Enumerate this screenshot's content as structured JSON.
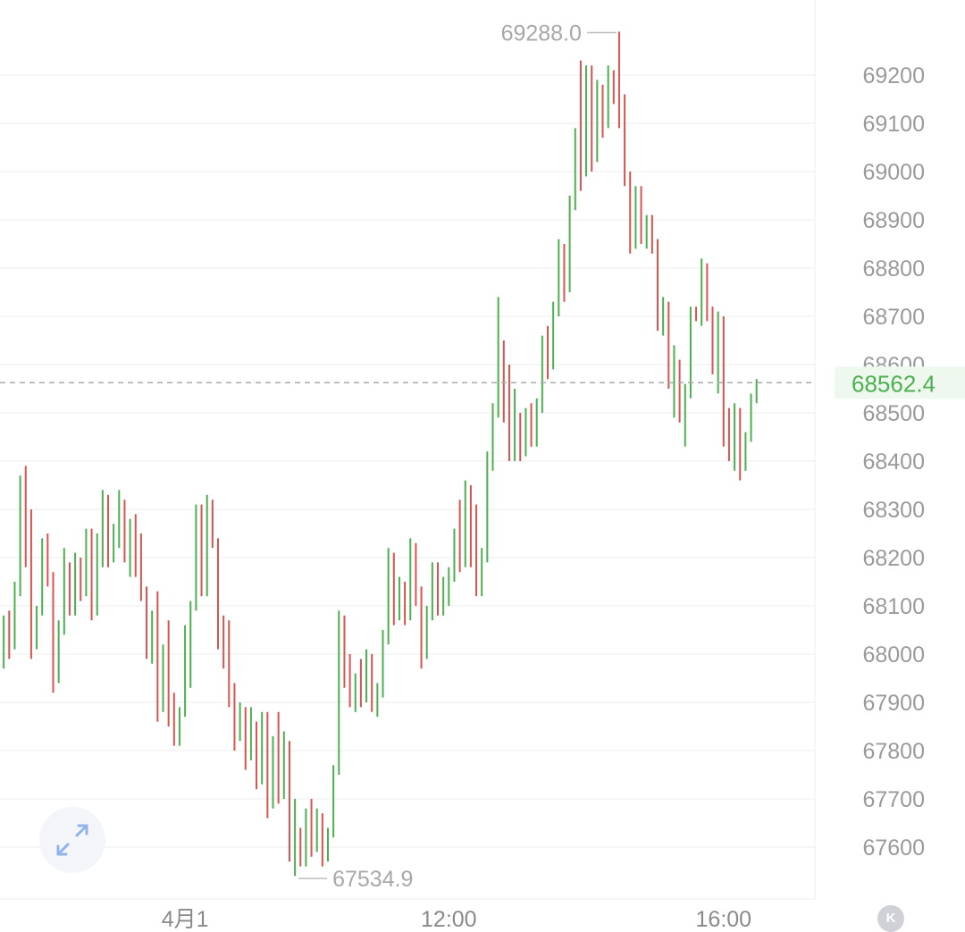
{
  "chart_data": {
    "type": "candlestick",
    "y_ticks": [
      69200,
      69100,
      69000,
      68900,
      68800,
      68700,
      68600,
      68500,
      68400,
      68300,
      68200,
      68100,
      68000,
      67900,
      67800,
      67700,
      67600
    ],
    "y_tick_labels": [
      "69200",
      "69100",
      "69000",
      "68900",
      "68800",
      "68700",
      "68600",
      "68500",
      "68400",
      "68300",
      "68200",
      "68100",
      "68000",
      "67900",
      "67800",
      "67700",
      "67600"
    ],
    "x_ticks": [
      {
        "label": "4月1",
        "bar": 34
      },
      {
        "label": "12:00",
        "bar": 82
      },
      {
        "label": "16:00",
        "bar": 132
      }
    ],
    "high": {
      "value": 69288.0,
      "label": "69288.0"
    },
    "low": {
      "value": 67534.9,
      "label": "67534.9"
    },
    "current_price": {
      "value": 68562.4,
      "label": "68562.4"
    },
    "colors": {
      "up": "#4caf50",
      "down": "#d9534f",
      "current_price": "#4caf50",
      "grid": "#eeeeee"
    },
    "ohlc": [
      [
        67930,
        68020,
        67910,
        67990
      ],
      [
        67990,
        68080,
        67970,
        68060
      ],
      [
        68060,
        68090,
        67990,
        68020
      ],
      [
        68020,
        68150,
        68010,
        68130
      ],
      [
        68130,
        68370,
        68120,
        68350
      ],
      [
        68350,
        68390,
        68180,
        68200
      ],
      [
        68200,
        68300,
        67990,
        68020
      ],
      [
        68020,
        68100,
        68010,
        68090
      ],
      [
        68090,
        68240,
        68080,
        68220
      ],
      [
        68220,
        68250,
        68140,
        68160
      ],
      [
        68160,
        68170,
        67920,
        67950
      ],
      [
        67950,
        68070,
        67940,
        68050
      ],
      [
        68050,
        68220,
        68040,
        68180
      ],
      [
        68180,
        68190,
        68080,
        68100
      ],
      [
        68100,
        68210,
        68080,
        68190
      ],
      [
        68190,
        68200,
        68110,
        68130
      ],
      [
        68130,
        68260,
        68120,
        68240
      ],
      [
        68240,
        68260,
        68070,
        68090
      ],
      [
        68090,
        68250,
        68080,
        68230
      ],
      [
        68230,
        68340,
        68180,
        68320
      ],
      [
        68320,
        68330,
        68180,
        68200
      ],
      [
        68200,
        68270,
        68190,
        68250
      ],
      [
        68250,
        68340,
        68220,
        68310
      ],
      [
        68310,
        68320,
        68190,
        68210
      ],
      [
        68210,
        68280,
        68160,
        68260
      ],
      [
        68260,
        68290,
        68160,
        68180
      ],
      [
        68180,
        68250,
        68110,
        68130
      ],
      [
        68130,
        68140,
        67990,
        68010
      ],
      [
        68010,
        68090,
        67980,
        68050
      ],
      [
        68050,
        68130,
        67860,
        67900
      ],
      [
        67900,
        68020,
        67880,
        68000
      ],
      [
        68000,
        68070,
        67850,
        67890
      ],
      [
        67890,
        67920,
        67810,
        67830
      ],
      [
        67830,
        67890,
        67810,
        67880
      ],
      [
        67880,
        68060,
        67870,
        68050
      ],
      [
        68050,
        68110,
        67930,
        68100
      ],
      [
        68100,
        68310,
        68090,
        68300
      ],
      [
        68300,
        68310,
        68120,
        68140
      ],
      [
        68140,
        68330,
        68120,
        68310
      ],
      [
        68310,
        68320,
        68220,
        68240
      ],
      [
        68240,
        68240,
        68010,
        68030
      ],
      [
        68030,
        68080,
        67970,
        68000
      ],
      [
        68000,
        68070,
        67890,
        67910
      ],
      [
        67910,
        67940,
        67800,
        67840
      ],
      [
        67840,
        67900,
        67820,
        67880
      ],
      [
        67880,
        67890,
        67760,
        67790
      ],
      [
        67790,
        67890,
        67780,
        67840
      ],
      [
        67840,
        67860,
        67720,
        67750
      ],
      [
        67750,
        67880,
        67730,
        67860
      ],
      [
        67860,
        67880,
        67660,
        67690
      ],
      [
        67690,
        67830,
        67680,
        67820
      ],
      [
        67820,
        67880,
        67690,
        67720
      ],
      [
        67720,
        67840,
        67700,
        67810
      ],
      [
        67810,
        67820,
        67570,
        67600
      ],
      [
        67600,
        67700,
        67540,
        67620
      ],
      [
        67620,
        67640,
        67560,
        67570
      ],
      [
        67570,
        67680,
        67560,
        67660
      ],
      [
        67660,
        67700,
        67580,
        67600
      ],
      [
        67600,
        67680,
        67590,
        67650
      ],
      [
        67650,
        67670,
        67560,
        67580
      ],
      [
        67580,
        67640,
        67570,
        67630
      ],
      [
        67630,
        67770,
        67620,
        67760
      ],
      [
        67760,
        68090,
        67750,
        68070
      ],
      [
        68070,
        68080,
        67930,
        67960
      ],
      [
        67960,
        68000,
        67890,
        67910
      ],
      [
        67910,
        67960,
        67880,
        67950
      ],
      [
        67950,
        67990,
        67890,
        67910
      ],
      [
        67910,
        68010,
        67900,
        67990
      ],
      [
        67990,
        68000,
        67880,
        67900
      ],
      [
        67900,
        67940,
        67870,
        67920
      ],
      [
        67920,
        68050,
        67910,
        68030
      ],
      [
        68030,
        68220,
        68020,
        68200
      ],
      [
        68200,
        68210,
        68060,
        68080
      ],
      [
        68080,
        68160,
        68070,
        68140
      ],
      [
        68140,
        68150,
        68060,
        68080
      ],
      [
        68080,
        68240,
        68070,
        68220
      ],
      [
        68220,
        68230,
        68100,
        68120
      ],
      [
        68120,
        68140,
        67970,
        68000
      ],
      [
        68000,
        68100,
        67990,
        68080
      ],
      [
        68080,
        68190,
        68070,
        68170
      ],
      [
        68170,
        68190,
        68080,
        68100
      ],
      [
        68100,
        68160,
        68080,
        68140
      ],
      [
        68140,
        68180,
        68100,
        68160
      ],
      [
        68160,
        68260,
        68150,
        68240
      ],
      [
        68240,
        68320,
        68170,
        68190
      ],
      [
        68190,
        68360,
        68180,
        68340
      ],
      [
        68340,
        68350,
        68180,
        68200
      ],
      [
        68200,
        68310,
        68120,
        68130
      ],
      [
        68130,
        68220,
        68120,
        68200
      ],
      [
        68200,
        68420,
        68190,
        68400
      ],
      [
        68400,
        68520,
        68380,
        68500
      ],
      [
        68500,
        68740,
        68490,
        68580
      ],
      [
        68580,
        68650,
        68480,
        68500
      ],
      [
        68500,
        68600,
        68400,
        68420
      ],
      [
        68420,
        68550,
        68400,
        68440
      ],
      [
        68440,
        68500,
        68400,
        68420
      ],
      [
        68420,
        68510,
        68410,
        68490
      ],
      [
        68490,
        68520,
        68430,
        68460
      ],
      [
        68460,
        68530,
        68430,
        68510
      ],
      [
        68510,
        68660,
        68500,
        68640
      ],
      [
        68640,
        68680,
        68570,
        68600
      ],
      [
        68600,
        68730,
        68590,
        68710
      ],
      [
        68710,
        68860,
        68700,
        68840
      ],
      [
        68840,
        68850,
        68730,
        68760
      ],
      [
        68760,
        68950,
        68750,
        68930
      ],
      [
        68930,
        69090,
        68920,
        69070
      ],
      [
        69070,
        69230,
        68960,
        69000
      ],
      [
        69000,
        69220,
        68990,
        69210
      ],
      [
        69210,
        69220,
        69000,
        69030
      ],
      [
        69030,
        69190,
        69020,
        69170
      ],
      [
        69170,
        69180,
        69070,
        69120
      ],
      [
        69120,
        69220,
        69090,
        69200
      ],
      [
        69200,
        69210,
        69140,
        69180
      ],
      [
        69180,
        69290,
        69090,
        69110
      ],
      [
        69110,
        69160,
        68970,
        68990
      ],
      [
        68990,
        69000,
        68830,
        68860
      ],
      [
        68860,
        68970,
        68840,
        68950
      ],
      [
        68950,
        68970,
        68850,
        68870
      ],
      [
        68870,
        68910,
        68840,
        68890
      ],
      [
        68890,
        68910,
        68830,
        68850
      ],
      [
        68850,
        68860,
        68670,
        68690
      ],
      [
        68690,
        68740,
        68660,
        68720
      ],
      [
        68720,
        68730,
        68550,
        68570
      ],
      [
        68570,
        68640,
        68490,
        68600
      ],
      [
        68600,
        68610,
        68480,
        68500
      ],
      [
        68500,
        68560,
        68430,
        68540
      ],
      [
        68540,
        68720,
        68530,
        68700
      ],
      [
        68700,
        68720,
        68690,
        68690
      ],
      [
        68690,
        68820,
        68680,
        68800
      ],
      [
        68800,
        68810,
        68690,
        68700
      ],
      [
        68700,
        68720,
        68580,
        68600
      ],
      [
        68600,
        68710,
        68540,
        68690
      ],
      [
        68690,
        68700,
        68430,
        68450
      ],
      [
        68450,
        68510,
        68400,
        68410
      ],
      [
        68410,
        68520,
        68380,
        68500
      ],
      [
        68500,
        68510,
        68360,
        68390
      ],
      [
        68390,
        68460,
        68380,
        68450
      ],
      [
        68450,
        68540,
        68440,
        68530
      ],
      [
        68530,
        68570,
        68520,
        68562.4
      ]
    ]
  }
}
